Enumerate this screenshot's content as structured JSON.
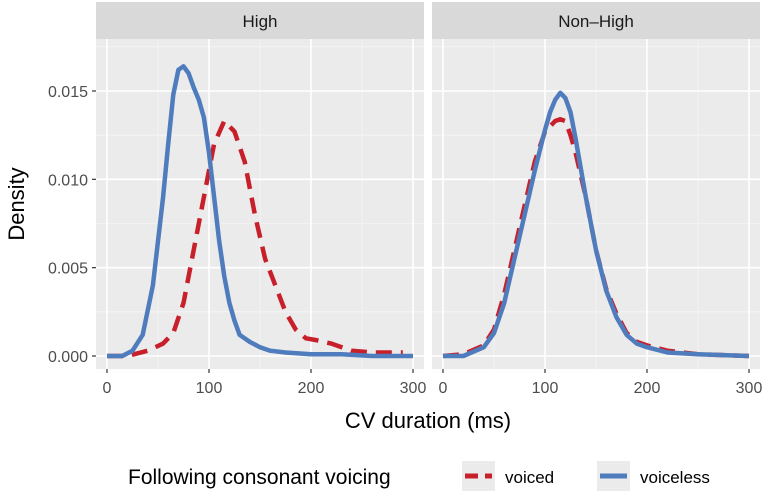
{
  "chart_data": {
    "type": "line",
    "xlabel": "CV duration (ms)",
    "ylabel": "Density",
    "xlim": [
      0,
      300
    ],
    "ylim": [
      0,
      0.0168
    ],
    "x_ticks": [
      0,
      100,
      200,
      300
    ],
    "y_ticks": [
      0.0,
      0.005,
      0.01,
      0.015
    ],
    "x_tick_labels": [
      "0",
      "100",
      "200",
      "300"
    ],
    "y_tick_labels": [
      "0.000",
      "0.005",
      "0.010",
      "0.015"
    ],
    "grid": true,
    "legend": {
      "title": "Following consonant voicing",
      "position": "bottom",
      "entries": [
        "voiced",
        "voiceless"
      ]
    },
    "colors": {
      "voiced": "#c8202b",
      "voiceless": "#4f7cbd"
    },
    "panels": [
      {
        "title": "High",
        "series": [
          {
            "name": "voiced",
            "x": [
              0,
              20,
              40,
              55,
              65,
              75,
              85,
              95,
              105,
              115,
              125,
              135,
              145,
              155,
              165,
              175,
              185,
              195,
              205,
              220,
              240,
              260,
              280,
              290
            ],
            "y": [
              0.0,
              0.0,
              0.0003,
              0.0007,
              0.0013,
              0.003,
              0.006,
              0.009,
              0.012,
              0.0133,
              0.0127,
              0.011,
              0.008,
              0.0055,
              0.004,
              0.0025,
              0.0015,
              0.001,
              0.0009,
              0.0007,
              0.0003,
              0.0002,
              0.0002,
              0.0002
            ]
          },
          {
            "name": "voiceless",
            "x": [
              0,
              15,
              25,
              35,
              45,
              55,
              60,
              65,
              70,
              75,
              80,
              85,
              90,
              95,
              100,
              105,
              110,
              115,
              120,
              125,
              130,
              140,
              150,
              160,
              175,
              200,
              230,
              260,
              300
            ],
            "y": [
              0.0,
              0.0,
              0.0003,
              0.0012,
              0.004,
              0.009,
              0.012,
              0.0148,
              0.0162,
              0.0164,
              0.016,
              0.0152,
              0.0145,
              0.0135,
              0.0115,
              0.009,
              0.0065,
              0.0045,
              0.003,
              0.002,
              0.0012,
              0.0008,
              0.0005,
              0.0003,
              0.0002,
              0.0001,
              0.0001,
              0.0,
              0.0
            ]
          }
        ]
      },
      {
        "title": "Non–High",
        "series": [
          {
            "name": "voiced",
            "x": [
              0,
              20,
              40,
              50,
              60,
              70,
              80,
              90,
              100,
              110,
              115,
              120,
              125,
              130,
              140,
              150,
              160,
              170,
              180,
              190,
              200,
              220,
              250,
              300
            ],
            "y": [
              0.0,
              0.0001,
              0.0006,
              0.0015,
              0.0035,
              0.006,
              0.0085,
              0.011,
              0.0127,
              0.0133,
              0.0134,
              0.0133,
              0.0125,
              0.0115,
              0.009,
              0.006,
              0.0038,
              0.0024,
              0.0013,
              0.0008,
              0.0006,
              0.0003,
              0.0001,
              0.0
            ]
          },
          {
            "name": "voiceless",
            "x": [
              0,
              20,
              40,
              50,
              60,
              70,
              80,
              90,
              100,
              105,
              110,
              115,
              120,
              125,
              130,
              140,
              150,
              160,
              170,
              180,
              190,
              200,
              220,
              250,
              300
            ],
            "y": [
              0.0,
              0.0,
              0.0005,
              0.0013,
              0.003,
              0.0055,
              0.008,
              0.0105,
              0.0128,
              0.0138,
              0.0145,
              0.0149,
              0.0146,
              0.0138,
              0.0123,
              0.009,
              0.006,
              0.0037,
              0.0022,
              0.0012,
              0.0007,
              0.0005,
              0.0002,
              0.0001,
              0.0
            ]
          }
        ]
      }
    ]
  }
}
